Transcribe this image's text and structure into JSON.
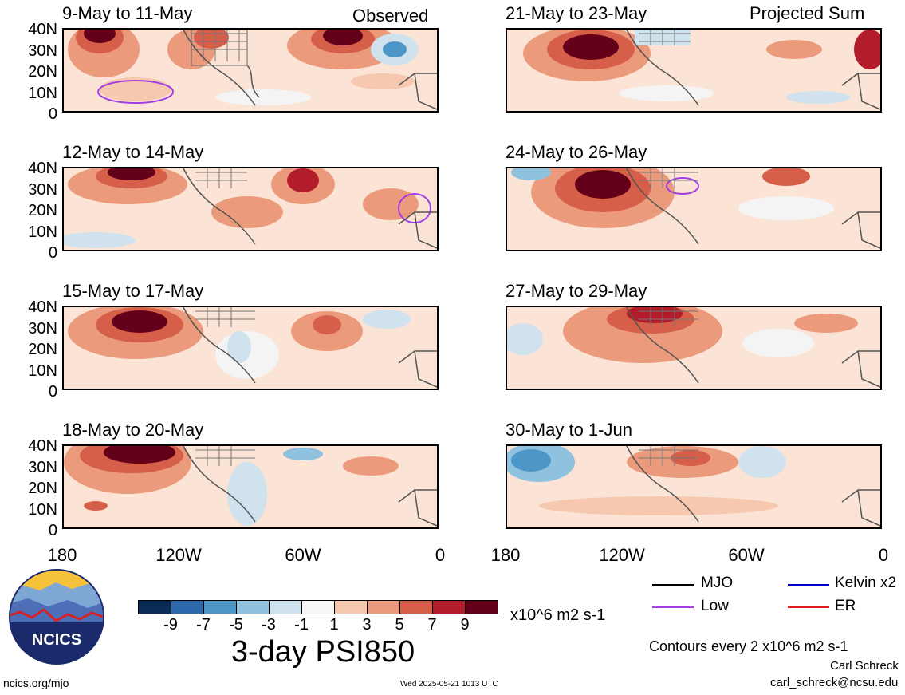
{
  "panels": [
    {
      "title": "9-May to 11-May",
      "corner": "Observed"
    },
    {
      "title": "21-May to 23-May",
      "corner": "Projected Sum"
    },
    {
      "title": "12-May to 14-May",
      "corner": ""
    },
    {
      "title": "24-May to 26-May",
      "corner": ""
    },
    {
      "title": "15-May to 17-May",
      "corner": ""
    },
    {
      "title": "27-May to 29-May",
      "corner": ""
    },
    {
      "title": "18-May to 20-May",
      "corner": ""
    },
    {
      "title": "30-May to 1-Jun",
      "corner": ""
    }
  ],
  "lat_labels": [
    "40N",
    "30N",
    "20N",
    "10N",
    "0"
  ],
  "lon_labels": [
    "180",
    "120W",
    "60W",
    "0"
  ],
  "colorbar": {
    "colors": [
      "#0a2a57",
      "#2b6aac",
      "#4d96c8",
      "#8fc2df",
      "#cfe2ee",
      "#f7f7f7",
      "#f6c8b0",
      "#eb9b7c",
      "#d65f4a",
      "#b21c2b",
      "#65001a"
    ],
    "labels": [
      "-9",
      "-7",
      "-5",
      "-3",
      "-1",
      "1",
      "3",
      "5",
      "7",
      "9"
    ],
    "units": "x10^6 m2 s-1"
  },
  "title": "3-day PSI850",
  "legend": [
    {
      "label": "MJO",
      "color": "#000000"
    },
    {
      "label": "Kelvin x2",
      "color": "#0000cc"
    },
    {
      "label": "Low",
      "color": "#a23ee6"
    },
    {
      "label": "ER",
      "color": "#e11c1c"
    }
  ],
  "contour_note": "Contours every 2 x10^6 m2 s-1",
  "author": "Carl Schreck",
  "email": "carl_schreck@ncsu.edu",
  "site": "ncics.org/mjo",
  "timestamp": "Wed 2025-05-21 1013 UTC",
  "logo_text": "NCICS"
}
